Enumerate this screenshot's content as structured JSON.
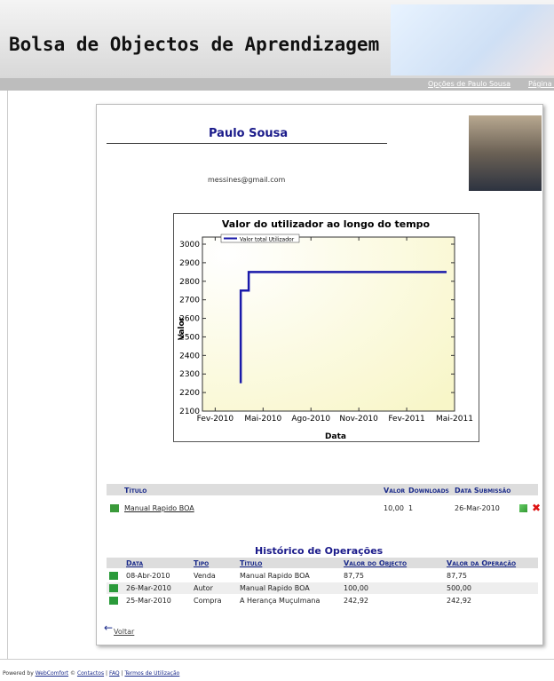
{
  "header": {
    "title": "Bolsa de Objectos de Aprendizagem",
    "nav": [
      "Opções de Paulo Sousa",
      "Página i"
    ]
  },
  "profile": {
    "name": "Paulo Sousa",
    "email": "messines@gmail.com"
  },
  "chart_data": {
    "type": "line",
    "title": "Valor do utilizador ao longo do tempo",
    "x_label": "Data",
    "y_label": "Valor",
    "x": [
      1.6,
      1.6,
      2.1,
      2.1,
      14.5
    ],
    "series": [
      {
        "name": "Valor total Utilizador",
        "color": "#1a1aaa",
        "values": [
          2250,
          2750,
          2750,
          2850,
          2850
        ]
      }
    ],
    "xlim": [
      -0.8,
      15
    ],
    "xticks": [
      {
        "value": 0,
        "label": "Fev-2010"
      },
      {
        "value": 3,
        "label": "Mai-2010"
      },
      {
        "value": 6,
        "label": "Ago-2010"
      },
      {
        "value": 9,
        "label": "Nov-2010"
      },
      {
        "value": 12,
        "label": "Fev-2011"
      },
      {
        "value": 15,
        "label": "Mai-2011"
      }
    ],
    "ylim": [
      2100,
      3000
    ],
    "yticks": [
      2100,
      2200,
      2300,
      2400,
      2500,
      2600,
      2700,
      2800,
      2900,
      3000
    ]
  },
  "objects": {
    "columns": [
      "Título",
      "Valor",
      "Downloads",
      "Data Submissão"
    ],
    "rows": [
      [
        "Manual Rapido BOA",
        "10,00",
        "1",
        "26-Mar-2010"
      ]
    ]
  },
  "history": {
    "title": "Histórico de Operações",
    "columns": [
      "Data",
      "Tipo",
      "Título",
      "Valor do Objecto",
      "Valor da Operação"
    ],
    "rows": [
      [
        "08-Abr-2010",
        "Venda",
        "Manual Rapido BOA",
        "87,75",
        "87,75"
      ],
      [
        "26-Mar-2010",
        "Autor",
        "Manual Rapido BOA",
        "100,00",
        "500,00"
      ],
      [
        "25-Mar-2010",
        "Compra",
        "A Herança Muçulmana",
        "242,92",
        "242,92"
      ]
    ]
  },
  "back": "Voltar",
  "footer": {
    "prefix": "Powered by",
    "brand": "WebComfort",
    "copy": "©",
    "sep": "|",
    "links": [
      "Contactos",
      "FAQ",
      "Termos de Utilização"
    ]
  }
}
